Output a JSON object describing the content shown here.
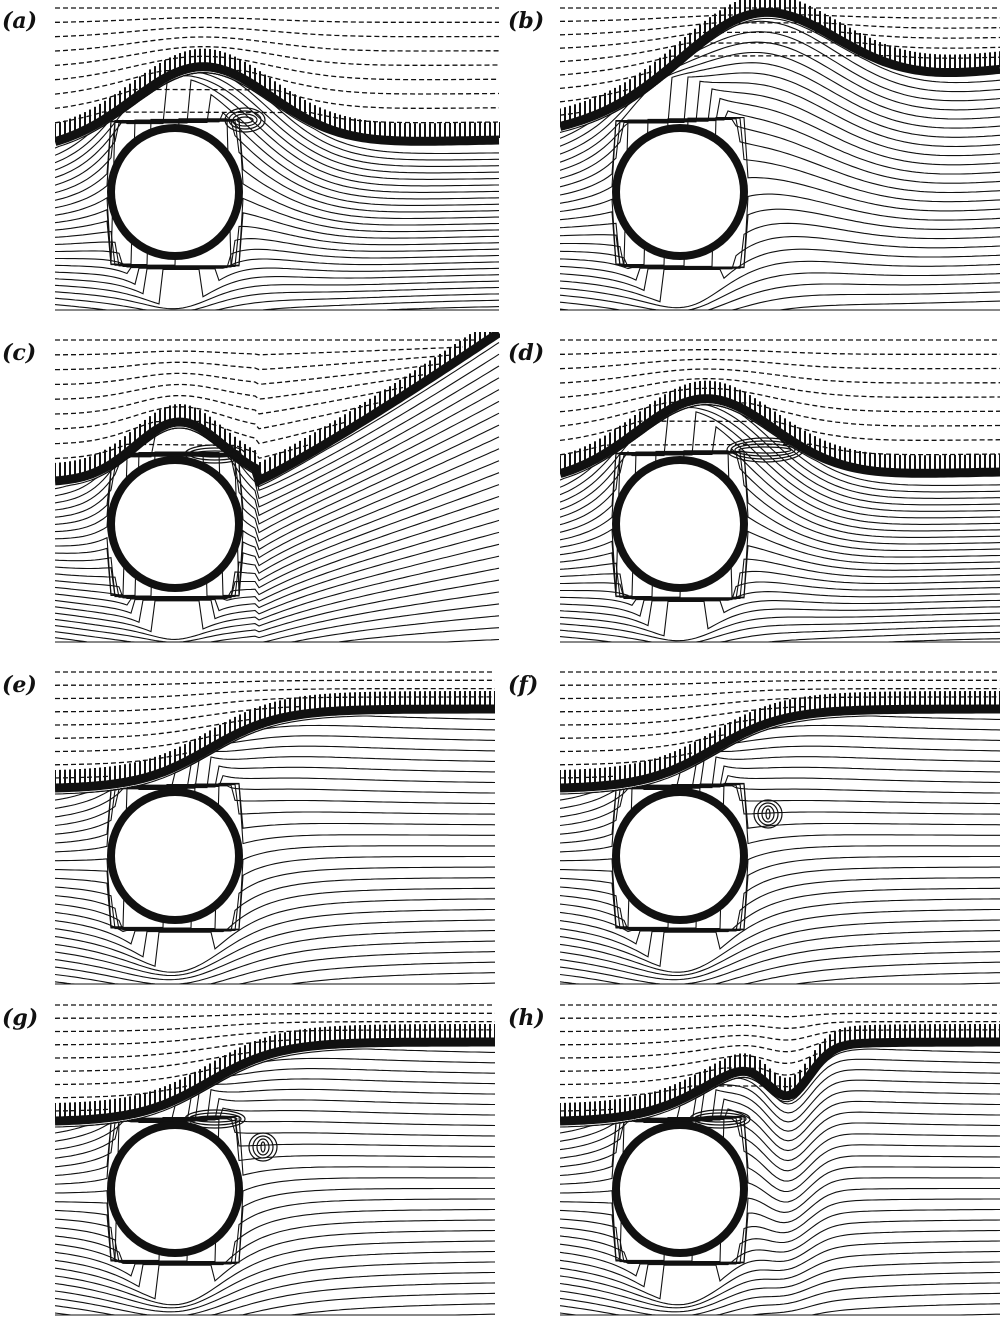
{
  "figure": {
    "panels": [
      {
        "label": "(a)",
        "flow": "crest",
        "eddies": [
          {
            "kind": "upper-lee"
          }
        ]
      },
      {
        "label": "(b)",
        "flow": "rising-bulge",
        "eddies": []
      },
      {
        "label": "(c)",
        "flow": "steep-rise",
        "eddies": [
          {
            "kind": "upper-cap"
          }
        ]
      },
      {
        "label": "(d)",
        "flow": "crest",
        "eddies": [
          {
            "kind": "wide-lee"
          }
        ]
      },
      {
        "label": "(e)",
        "flow": "shoulder",
        "eddies": []
      },
      {
        "label": "(f)",
        "flow": "shoulder",
        "eddies": [
          {
            "kind": "lee-small"
          }
        ]
      },
      {
        "label": "(g)",
        "flow": "shoulder",
        "eddies": [
          {
            "kind": "upper-cap"
          },
          {
            "kind": "lee-small"
          }
        ]
      },
      {
        "label": "(h)",
        "flow": "shoulder-dip",
        "eddies": [
          {
            "kind": "upper-cap"
          }
        ]
      }
    ]
  },
  "colors": {
    "ink": "#111111",
    "paper": "#ffffff"
  }
}
